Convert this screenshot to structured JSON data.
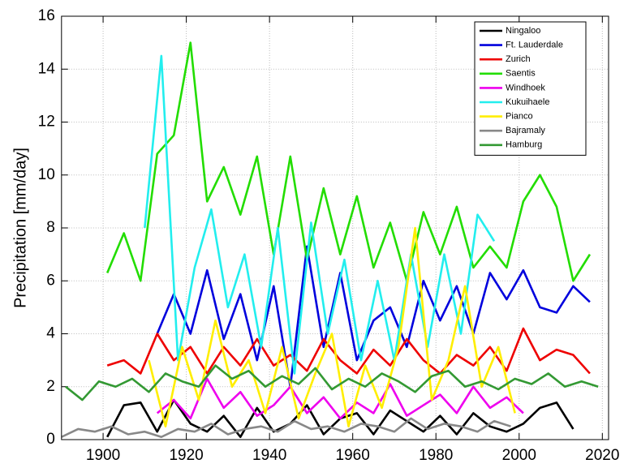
{
  "chart_data": {
    "type": "line",
    "ylabel": "Precipitation [mm/day]",
    "xlim": [
      1890,
      2021.5
    ],
    "xticks": [
      1900,
      1920,
      1940,
      1960,
      1980,
      2000,
      2020
    ],
    "ylim": [
      0,
      16
    ],
    "yticks": [
      0,
      2,
      4,
      6,
      8,
      10,
      12,
      14,
      16
    ],
    "grid": true,
    "legend": "upper right",
    "series": [
      {
        "name": "Ningaloo",
        "color": "#000000",
        "x": [
          1901,
          1905,
          1909,
          1913,
          1917,
          1921,
          1925,
          1929,
          1933,
          1937,
          1941,
          1945,
          1949,
          1953,
          1957,
          1961,
          1965,
          1969,
          1973,
          1977,
          1981,
          1985,
          1989,
          1993,
          1997,
          2001,
          2005,
          2009,
          2013
        ],
        "values": [
          0.1,
          1.3,
          1.4,
          0.3,
          1.5,
          0.6,
          0.3,
          0.9,
          0.1,
          1.2,
          0.3,
          0.6,
          1.3,
          0.2,
          0.8,
          1.0,
          0.2,
          1.1,
          0.7,
          0.3,
          0.9,
          0.2,
          1.0,
          0.5,
          0.3,
          0.6,
          1.2,
          1.4,
          0.4
        ]
      },
      {
        "name": "Ft. Lauderdale",
        "color": "#0000dd",
        "x": [
          1913,
          1917,
          1921,
          1925,
          1929,
          1933,
          1937,
          1941,
          1945,
          1949,
          1953,
          1957,
          1961,
          1965,
          1969,
          1973,
          1977,
          1981,
          1985,
          1989,
          1993,
          1997,
          2001,
          2005,
          2009,
          2013,
          2017
        ],
        "values": [
          4.0,
          5.5,
          4.0,
          6.4,
          3.8,
          5.5,
          3.0,
          5.8,
          2.0,
          7.3,
          3.5,
          6.3,
          3.0,
          4.5,
          5.0,
          3.5,
          6.0,
          4.5,
          5.8,
          4.0,
          6.3,
          5.3,
          6.4,
          5.0,
          4.8,
          5.8,
          5.2
        ]
      },
      {
        "name": "Zurich",
        "color": "#ee0000",
        "x": [
          1901,
          1905,
          1909,
          1913,
          1917,
          1921,
          1925,
          1929,
          1933,
          1937,
          1941,
          1945,
          1949,
          1953,
          1957,
          1961,
          1965,
          1969,
          1973,
          1977,
          1981,
          1985,
          1989,
          1993,
          1997,
          2001,
          2005,
          2009,
          2013,
          2017
        ],
        "values": [
          2.8,
          3.0,
          2.5,
          4.0,
          3.0,
          3.5,
          2.5,
          3.5,
          2.8,
          3.8,
          2.8,
          3.2,
          2.6,
          3.8,
          3.0,
          2.5,
          3.4,
          2.8,
          3.8,
          3.0,
          2.5,
          3.2,
          2.8,
          3.5,
          2.6,
          4.2,
          3.0,
          3.4,
          3.2,
          2.5
        ]
      },
      {
        "name": "Saentis",
        "color": "#22dd00",
        "x": [
          1901,
          1905,
          1909,
          1913,
          1917,
          1921,
          1925,
          1929,
          1933,
          1937,
          1941,
          1945,
          1949,
          1953,
          1957,
          1961,
          1965,
          1969,
          1973,
          1977,
          1981,
          1985,
          1989,
          1993,
          1997,
          2001,
          2005,
          2009,
          2013,
          2017
        ],
        "values": [
          6.3,
          7.8,
          6.0,
          10.8,
          11.5,
          15.0,
          9.0,
          10.3,
          8.5,
          10.7,
          7.0,
          10.7,
          6.8,
          9.5,
          7.0,
          9.2,
          6.5,
          8.2,
          6.0,
          8.6,
          7.0,
          8.8,
          6.5,
          7.3,
          6.5,
          9.0,
          10.0,
          8.8,
          6.0,
          7.0
        ]
      },
      {
        "name": "Windhoek",
        "color": "#ee00ee",
        "x": [
          1913,
          1917,
          1921,
          1925,
          1929,
          1933,
          1937,
          1941,
          1945,
          1949,
          1953,
          1957,
          1961,
          1965,
          1969,
          1973,
          1977,
          1981,
          1985,
          1989,
          1993,
          1997,
          2001
        ],
        "values": [
          1.0,
          1.5,
          0.8,
          2.3,
          1.2,
          1.8,
          0.9,
          1.3,
          2.0,
          1.0,
          1.6,
          0.8,
          1.4,
          1.0,
          2.1,
          0.9,
          1.3,
          1.7,
          1.0,
          2.0,
          1.2,
          1.6,
          1.0
        ]
      },
      {
        "name": "Kukuihaele",
        "color": "#22eeee",
        "x": [
          1910,
          1914,
          1918,
          1922,
          1926,
          1930,
          1934,
          1938,
          1942,
          1946,
          1950,
          1954,
          1958,
          1962,
          1966,
          1970,
          1974,
          1978,
          1982,
          1986,
          1990,
          1994
        ],
        "values": [
          8.0,
          14.5,
          3.0,
          6.5,
          8.7,
          5.0,
          7.0,
          3.5,
          8.0,
          2.5,
          8.2,
          4.0,
          6.8,
          3.0,
          6.0,
          3.0,
          7.0,
          3.5,
          7.0,
          4.0,
          8.5,
          7.5
        ]
      },
      {
        "name": "Pianco",
        "color": "#ffee00",
        "x": [
          1911,
          1915,
          1919,
          1923,
          1927,
          1931,
          1935,
          1939,
          1943,
          1947,
          1951,
          1955,
          1959,
          1963,
          1967,
          1971,
          1975,
          1979,
          1983,
          1987,
          1991,
          1995,
          1999
        ],
        "values": [
          3.0,
          0.5,
          3.5,
          1.5,
          4.5,
          2.0,
          3.0,
          1.0,
          3.5,
          0.8,
          2.5,
          4.0,
          0.5,
          2.8,
          1.2,
          3.5,
          8.0,
          1.5,
          3.0,
          5.8,
          2.0,
          3.5,
          1.0
        ]
      },
      {
        "name": "Bajramaly",
        "color": "#888888",
        "x": [
          1890,
          1894,
          1898,
          1902,
          1906,
          1910,
          1914,
          1918,
          1922,
          1926,
          1930,
          1934,
          1938,
          1942,
          1946,
          1950,
          1954,
          1958,
          1962,
          1966,
          1970,
          1974,
          1978,
          1982,
          1986,
          1990,
          1994,
          1998
        ],
        "values": [
          0.1,
          0.4,
          0.3,
          0.5,
          0.2,
          0.3,
          0.1,
          0.4,
          0.3,
          0.6,
          0.2,
          0.4,
          0.5,
          0.3,
          0.7,
          0.4,
          0.5,
          0.3,
          0.6,
          0.5,
          0.3,
          0.8,
          0.4,
          0.6,
          0.5,
          0.3,
          0.7,
          0.5
        ]
      },
      {
        "name": "Hamburg",
        "color": "#339933",
        "x": [
          1891,
          1895,
          1899,
          1903,
          1907,
          1911,
          1915,
          1919,
          1923,
          1927,
          1931,
          1935,
          1939,
          1943,
          1947,
          1951,
          1955,
          1959,
          1963,
          1967,
          1971,
          1975,
          1979,
          1983,
          1987,
          1991,
          1995,
          1999,
          2003,
          2007,
          2011,
          2015,
          2019
        ],
        "values": [
          2.0,
          1.5,
          2.2,
          2.0,
          2.3,
          1.8,
          2.5,
          2.2,
          2.0,
          2.8,
          2.3,
          2.6,
          2.0,
          2.4,
          2.1,
          2.7,
          1.9,
          2.3,
          2.0,
          2.5,
          2.2,
          1.8,
          2.4,
          2.6,
          2.0,
          2.2,
          1.9,
          2.3,
          2.1,
          2.5,
          2.0,
          2.2,
          2.0
        ]
      }
    ]
  }
}
